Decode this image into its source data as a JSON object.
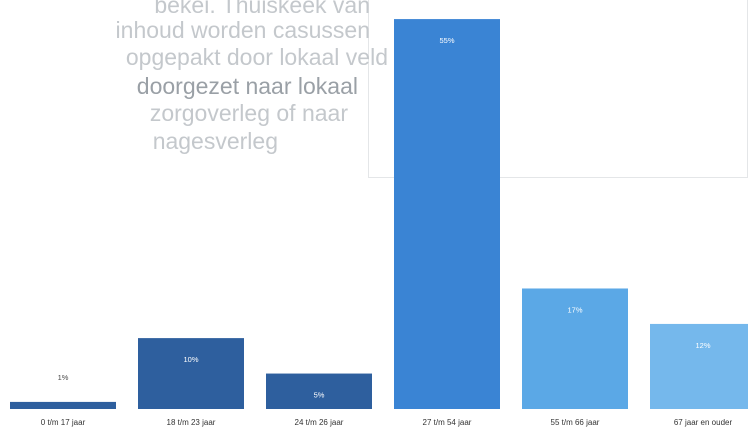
{
  "background_text": {
    "lines": [
      "bekei. Thuiskeek van",
      "inhoud worden casussen",
      "opgepakt door lokaal veld",
      "doorgezet naar lokaal",
      "zorgoverleg of naar",
      "nagesverleg"
    ]
  },
  "colors": {
    "dark_blue": "#2e5f9e",
    "medium_blue": "#3a84d4",
    "light_blue": "#5ba8e6",
    "lighter_blue": "#75b8ec"
  },
  "chart_data": {
    "type": "bar",
    "categories": [
      "0 t/m 17 jaar",
      "18 t/m 23 jaar",
      "24 t/m 26 jaar",
      "27 t/m 54 jaar",
      "55 t/m 66 jaar",
      "67 jaar en ouder"
    ],
    "values": [
      1,
      10,
      5,
      55,
      17,
      12
    ],
    "value_labels": [
      "1%",
      "10%",
      "5%",
      "55%",
      "17%",
      "12%"
    ],
    "bar_colors": [
      "#2e5f9e",
      "#2e5f9e",
      "#2e5f9e",
      "#3a84d4",
      "#5ba8e6",
      "#75b8ec"
    ],
    "unit": "%",
    "ylim": [
      0,
      56
    ],
    "grid": false,
    "legend": "none"
  }
}
